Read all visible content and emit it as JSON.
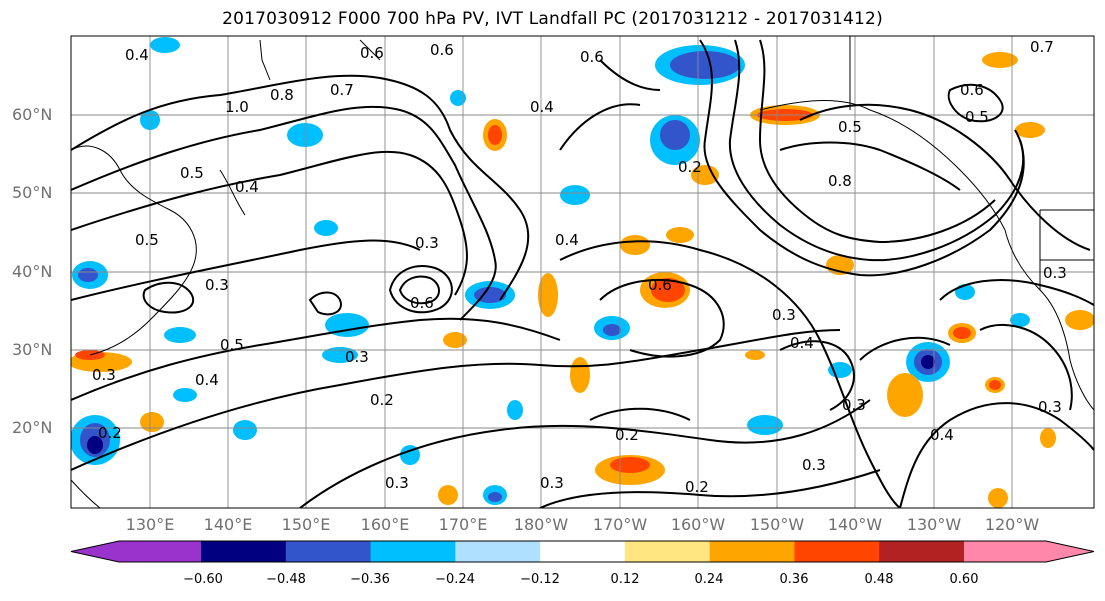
{
  "title": "2017030912 F000 700 hPa PV, IVT Landfall PC (2017031212 - 2017031412)",
  "lat_labels": [
    "60°N",
    "50°N",
    "40°N",
    "30°N",
    "20°N"
  ],
  "lon_labels": [
    "130°E",
    "140°E",
    "150°E",
    "160°E",
    "170°E",
    "180°W",
    "170°W",
    "160°W",
    "150°W",
    "140°W",
    "130°W",
    "120°W"
  ],
  "colorbar": {
    "ticks": [
      "−0.60",
      "−0.48",
      "−0.36",
      "−0.24",
      "−0.12",
      "0.12",
      "0.24",
      "0.36",
      "0.48",
      "0.60"
    ],
    "colors": [
      "#9933cc",
      "#000080",
      "#3355cc",
      "#00bfff",
      "#b0e0ff",
      "#ffffff",
      "#ffe680",
      "#ffa500",
      "#ff4500",
      "#b22222",
      "#ff88aa"
    ]
  },
  "contour_labels": [
    "0.4",
    "0.6",
    "0.7",
    "0.8",
    "1.0",
    "0.5",
    "0.4",
    "0.6",
    "0.6",
    "0.4",
    "0.2",
    "0.5",
    "0.8",
    "0.6",
    "0.5",
    "0.5",
    "0.3",
    "0.6",
    "0.3",
    "0.4",
    "0.6",
    "0.5",
    "0.4",
    "0.3",
    "0.3",
    "0.4",
    "0.3",
    "0.2",
    "0.2",
    "0.3",
    "0.3",
    "0.4",
    "0.3",
    "0.2",
    "0.3",
    "0.3",
    "0.3",
    "0.2",
    "0.7"
  ]
}
